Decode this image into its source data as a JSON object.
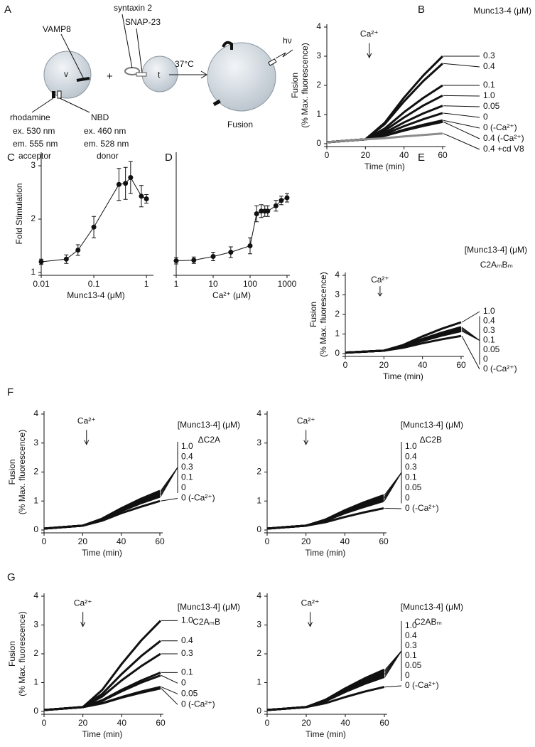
{
  "diagram": {
    "letter": "A",
    "v_snare": "VAMP8",
    "syntaxin": "syntaxin 2",
    "snap": "SNAP-23",
    "v": "v",
    "t": "t",
    "plus": "+",
    "temperature": "37°C",
    "light": "hν",
    "fusion": "Fusion",
    "acceptor": {
      "dye": "rhodamine",
      "ex": "ex.  530 nm",
      "em": "em. 555 nm",
      "role": "acceptor"
    },
    "donor": {
      "dye": "NBD",
      "ex": "ex.  460 nm",
      "em": "em. 528 nm",
      "role": "donor"
    }
  },
  "chart_data": [
    {
      "type": "line",
      "letter": "B",
      "title": "Munc13-4 (μM)",
      "ylabel": [
        "Fusion",
        "(% Max. fluorescence)"
      ],
      "xlabel": "Time (min)",
      "annotation": {
        "text": "Ca²⁺",
        "x": 22
      },
      "x": [
        0,
        10,
        20,
        30,
        40,
        50,
        60
      ],
      "xlim": [
        0,
        60
      ],
      "xticks": [
        0,
        20,
        40,
        60
      ],
      "ylim": [
        0,
        4
      ],
      "yticks": [
        0,
        1,
        2,
        3,
        4
      ],
      "series": [
        {
          "name": "0.3",
          "color": "#111111",
          "values": [
            0.05,
            0.1,
            0.15,
            0.72,
            1.58,
            2.34,
            3.0
          ]
        },
        {
          "name": "0.4",
          "color": "#111111",
          "values": [
            0.05,
            0.1,
            0.15,
            0.67,
            1.45,
            2.15,
            2.75
          ]
        },
        {
          "name": "0.1",
          "color": "#111111",
          "values": [
            0.05,
            0.1,
            0.15,
            0.52,
            1.08,
            1.57,
            2.0
          ]
        },
        {
          "name": "1.0",
          "color": "#111111",
          "values": [
            0.05,
            0.1,
            0.15,
            0.45,
            0.9,
            1.31,
            1.65
          ]
        },
        {
          "name": "0.05",
          "color": "#111111",
          "values": [
            0.05,
            0.1,
            0.15,
            0.38,
            0.73,
            1.04,
            1.3
          ]
        },
        {
          "name": "0",
          "color": "#111111",
          "values": [
            0.05,
            0.1,
            0.15,
            0.33,
            0.6,
            0.84,
            1.05
          ]
        },
        {
          "name": "0 (-Ca²⁺)",
          "color": "#111111",
          "values": [
            0.05,
            0.1,
            0.15,
            0.28,
            0.48,
            0.65,
            0.8
          ]
        },
        {
          "name": "0.4 (-Ca²⁺)",
          "color": "#111111",
          "values": [
            0.05,
            0.1,
            0.15,
            0.27,
            0.45,
            0.61,
            0.75
          ]
        },
        {
          "name": "0.4 +cd V8",
          "color": "#8c8c8c",
          "values": [
            0.05,
            0.1,
            0.15,
            0.19,
            0.25,
            0.3,
            0.35
          ]
        }
      ]
    },
    {
      "type": "line",
      "letter": "C",
      "ylabel": [
        "Fold Stimulation"
      ],
      "xlabel": "Munc13-4 (μM)",
      "xscale": "log",
      "x": [
        0.01,
        0.03,
        0.05,
        0.1,
        0.3,
        0.4,
        0.5,
        0.8,
        1.0
      ],
      "xlim": [
        0.01,
        1.2
      ],
      "xticks": [
        0.01,
        0.1,
        1
      ],
      "ylim": [
        1,
        3.2
      ],
      "yticks": [
        1,
        2,
        3
      ],
      "values": [
        1.2,
        1.25,
        1.42,
        1.85,
        2.65,
        2.67,
        2.78,
        2.43,
        2.38
      ],
      "errors": [
        0.05,
        0.08,
        0.1,
        0.2,
        0.3,
        0.3,
        0.3,
        0.2,
        0.08
      ],
      "color": "#111111"
    },
    {
      "type": "line",
      "letter": "D",
      "xlabel": "Ca²⁺ (μM)",
      "xscale": "log",
      "x": [
        1,
        3,
        10,
        30,
        100,
        150,
        200,
        250,
        300,
        500,
        700,
        1000
      ],
      "xlim": [
        1,
        1000
      ],
      "xticks": [
        1,
        10,
        100,
        1000
      ],
      "ylim": [
        1,
        3.2
      ],
      "values": [
        1.22,
        1.23,
        1.3,
        1.38,
        1.5,
        2.1,
        2.15,
        2.15,
        2.15,
        2.25,
        2.35,
        2.4
      ],
      "errors": [
        0.06,
        0.06,
        0.08,
        0.1,
        0.15,
        0.15,
        0.12,
        0.1,
        0.1,
        0.1,
        0.08,
        0.08
      ],
      "color": "#111111"
    },
    {
      "type": "line",
      "letter": "E",
      "title": "[Munc13-4] (μM)",
      "subtitle": "C2AₘBₘ",
      "ylabel": [
        "Fusion",
        "(% Max. fluorescence)"
      ],
      "xlabel": "Time (min)",
      "annotation": {
        "text": "Ca²⁺",
        "x": 18
      },
      "x": [
        0,
        10,
        20,
        30,
        40,
        50,
        60
      ],
      "xlim": [
        0,
        60
      ],
      "xticks": [
        0,
        20,
        40,
        60
      ],
      "ylim": [
        0,
        4
      ],
      "yticks": [
        0,
        1,
        2,
        3,
        4
      ],
      "series": [
        {
          "name": "1.0",
          "color": "#111111",
          "values": [
            0.05,
            0.1,
            0.15,
            0.44,
            0.88,
            1.27,
            1.6
          ]
        },
        {
          "name": "0.4",
          "color": "#111111",
          "values": [
            0.05,
            0.1,
            0.15,
            0.39,
            0.75,
            1.07,
            1.35
          ]
        },
        {
          "name": "0.3",
          "color": "#111111",
          "values": [
            0.05,
            0.1,
            0.15,
            0.38,
            0.73,
            1.04,
            1.3
          ]
        },
        {
          "name": "0.1",
          "color": "#111111",
          "values": [
            0.05,
            0.1,
            0.15,
            0.37,
            0.7,
            1.0,
            1.25
          ]
        },
        {
          "name": "0.05",
          "color": "#111111",
          "values": [
            0.05,
            0.1,
            0.15,
            0.36,
            0.68,
            0.96,
            1.2
          ]
        },
        {
          "name": "0",
          "color": "#111111",
          "values": [
            0.05,
            0.1,
            0.15,
            0.35,
            0.65,
            0.92,
            1.15
          ]
        },
        {
          "name": "0 (-Ca²⁺)",
          "color": "#111111",
          "values": [
            0.05,
            0.1,
            0.15,
            0.3,
            0.53,
            0.73,
            0.9
          ]
        }
      ]
    },
    {
      "type": "line",
      "letter": "F",
      "title": "[Munc13-4] (μM)",
      "subtitle": "ΔC2A",
      "ylabel": [
        "Fusion",
        "(% Max. fluorescence)"
      ],
      "xlabel": "Time (min)",
      "annotation": {
        "text": "Ca²⁺",
        "x": 22
      },
      "x": [
        0,
        10,
        20,
        30,
        40,
        50,
        60
      ],
      "xlim": [
        0,
        60
      ],
      "xticks": [
        0,
        20,
        40,
        60
      ],
      "ylim": [
        0,
        4
      ],
      "yticks": [
        0,
        1,
        2,
        3,
        4
      ],
      "series": [
        {
          "name": "1.0",
          "color": "#111111",
          "values": [
            0.05,
            0.1,
            0.15,
            0.39,
            0.75,
            1.07,
            1.35
          ]
        },
        {
          "name": "0.4",
          "color": "#111111",
          "values": [
            0.05,
            0.1,
            0.15,
            0.38,
            0.73,
            1.04,
            1.3
          ]
        },
        {
          "name": "0.3",
          "color": "#111111",
          "values": [
            0.05,
            0.1,
            0.15,
            0.37,
            0.7,
            1.0,
            1.25
          ]
        },
        {
          "name": "0.1",
          "color": "#111111",
          "values": [
            0.05,
            0.1,
            0.15,
            0.36,
            0.68,
            0.96,
            1.2
          ]
        },
        {
          "name": "0",
          "color": "#111111",
          "values": [
            0.05,
            0.1,
            0.15,
            0.35,
            0.65,
            0.92,
            1.15
          ]
        },
        {
          "name": "0 (-Ca²⁺)",
          "color": "#111111",
          "values": [
            0.05,
            0.1,
            0.15,
            0.32,
            0.58,
            0.8,
            1.0
          ]
        }
      ]
    },
    {
      "type": "line",
      "title": "[Munc13-4] (μM)",
      "subtitle": "ΔC2B",
      "xlabel": "Time (min)",
      "annotation": {
        "text": "Ca²⁺",
        "x": 20
      },
      "x": [
        0,
        10,
        20,
        30,
        40,
        50,
        60
      ],
      "xlim": [
        0,
        60
      ],
      "xticks": [
        0,
        20,
        40,
        60
      ],
      "ylim": [
        0,
        4
      ],
      "yticks": [
        0,
        1,
        2,
        3,
        4
      ],
      "series": [
        {
          "name": "1.0",
          "color": "#111111",
          "values": [
            0.05,
            0.1,
            0.15,
            0.36,
            0.68,
            0.96,
            1.2
          ]
        },
        {
          "name": "0.4",
          "color": "#111111",
          "values": [
            0.05,
            0.1,
            0.15,
            0.35,
            0.65,
            0.92,
            1.15
          ]
        },
        {
          "name": "0.3",
          "color": "#111111",
          "values": [
            0.05,
            0.1,
            0.15,
            0.34,
            0.63,
            0.88,
            1.1
          ]
        },
        {
          "name": "0.1",
          "color": "#111111",
          "values": [
            0.05,
            0.1,
            0.15,
            0.34,
            0.62,
            0.87,
            1.1
          ]
        },
        {
          "name": "0.05",
          "color": "#111111",
          "values": [
            0.05,
            0.1,
            0.15,
            0.33,
            0.6,
            0.84,
            1.05
          ]
        },
        {
          "name": "0",
          "color": "#111111",
          "values": [
            0.05,
            0.1,
            0.15,
            0.32,
            0.58,
            0.8,
            1.0
          ]
        },
        {
          "name": "0 (-Ca²⁺)",
          "color": "#111111",
          "values": [
            0.05,
            0.1,
            0.15,
            0.27,
            0.45,
            0.61,
            0.75
          ]
        }
      ]
    },
    {
      "type": "line",
      "letter": "G",
      "title": "[Munc13-4] (μM)",
      "subtitle": "C2AₘB",
      "ylabel": [
        "Fusion",
        "(% Max. fluorescence)"
      ],
      "xlabel": "Time (min)",
      "annotation": {
        "text": "Ca²⁺",
        "x": 20
      },
      "x": [
        0,
        10,
        20,
        30,
        40,
        50,
        60
      ],
      "xlim": [
        0,
        60
      ],
      "xticks": [
        0,
        20,
        40,
        60
      ],
      "ylim": [
        0,
        4
      ],
      "yticks": [
        0,
        1,
        2,
        3,
        4
      ],
      "series": [
        {
          "name": "1.0",
          "color": "#111111",
          "values": [
            0.05,
            0.1,
            0.15,
            0.75,
            1.65,
            2.46,
            3.15
          ]
        },
        {
          "name": "0.4",
          "color": "#111111",
          "values": [
            0.05,
            0.1,
            0.15,
            0.61,
            1.3,
            1.92,
            2.45
          ]
        },
        {
          "name": "0.3",
          "color": "#111111",
          "values": [
            0.05,
            0.1,
            0.15,
            0.52,
            1.08,
            1.57,
            2.0
          ]
        },
        {
          "name": "0.1",
          "color": "#111111",
          "values": [
            0.05,
            0.1,
            0.15,
            0.39,
            0.75,
            1.07,
            1.35
          ]
        },
        {
          "name": "0",
          "color": "#111111",
          "values": [
            0.05,
            0.1,
            0.15,
            0.37,
            0.7,
            1.0,
            1.25
          ]
        },
        {
          "name": "0.05",
          "color": "#111111",
          "values": [
            0.05,
            0.1,
            0.15,
            0.29,
            0.5,
            0.69,
            0.85
          ]
        },
        {
          "name": "0 (-Ca²⁺)",
          "color": "#111111",
          "values": [
            0.05,
            0.1,
            0.15,
            0.28,
            0.48,
            0.65,
            0.8
          ]
        }
      ]
    },
    {
      "type": "line",
      "title": "[Munc13-4] (μM)",
      "subtitle": "C2ABₘ",
      "xlabel": "Time (min)",
      "annotation": {
        "text": "Ca²⁺",
        "x": 22
      },
      "x": [
        0,
        10,
        20,
        30,
        40,
        50,
        60
      ],
      "xlim": [
        0,
        60
      ],
      "xticks": [
        0,
        20,
        40,
        60
      ],
      "ylim": [
        0,
        4
      ],
      "yticks": [
        0,
        1,
        2,
        3,
        4
      ],
      "series": [
        {
          "name": "1.0",
          "color": "#111111",
          "values": [
            0.05,
            0.1,
            0.15,
            0.41,
            0.8,
            1.15,
            1.45
          ]
        },
        {
          "name": "0.4",
          "color": "#111111",
          "values": [
            0.05,
            0.1,
            0.15,
            0.4,
            0.78,
            1.11,
            1.4
          ]
        },
        {
          "name": "0.3",
          "color": "#111111",
          "values": [
            0.05,
            0.1,
            0.15,
            0.39,
            0.75,
            1.07,
            1.35
          ]
        },
        {
          "name": "0.1",
          "color": "#111111",
          "values": [
            0.05,
            0.1,
            0.15,
            0.38,
            0.73,
            1.04,
            1.3
          ]
        },
        {
          "name": "0.05",
          "color": "#111111",
          "values": [
            0.05,
            0.1,
            0.15,
            0.37,
            0.7,
            1.0,
            1.25
          ]
        },
        {
          "name": "0",
          "color": "#111111",
          "values": [
            0.05,
            0.1,
            0.15,
            0.36,
            0.68,
            0.96,
            1.2
          ]
        },
        {
          "name": "0 (-Ca²⁺)",
          "color": "#111111",
          "values": [
            0.05,
            0.1,
            0.15,
            0.29,
            0.5,
            0.69,
            0.85
          ]
        }
      ]
    }
  ]
}
